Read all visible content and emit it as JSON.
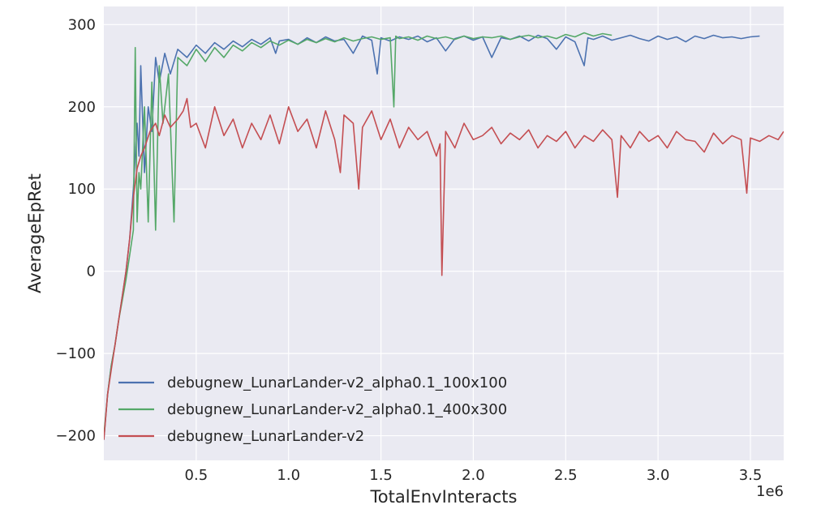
{
  "chart_data": {
    "type": "line",
    "xlabel": "TotalEnvInteracts",
    "ylabel": "AverageEpRet",
    "x_offset_label": "1e6",
    "xlim": [
      0,
      3.68
    ],
    "ylim": [
      -230,
      322
    ],
    "xticks": [
      0.5,
      1.0,
      1.5,
      2.0,
      2.5,
      3.0,
      3.5
    ],
    "xtick_labels": [
      "0.5",
      "1.0",
      "1.5",
      "2.0",
      "2.5",
      "3.0",
      "3.5"
    ],
    "yticks": [
      -200,
      -100,
      0,
      100,
      200,
      300
    ],
    "ytick_labels": [
      "−200",
      "−100",
      "0",
      "100",
      "200",
      "300"
    ],
    "grid": true,
    "legend_position": "lower-left",
    "background": "#EAEAF2",
    "series": [
      {
        "name": "debugnew_LunarLander-v2_alpha0.1_100x100",
        "color": "#4C72B0",
        "x": [
          0.0,
          0.02,
          0.04,
          0.06,
          0.08,
          0.1,
          0.12,
          0.14,
          0.16,
          0.18,
          0.19,
          0.2,
          0.22,
          0.24,
          0.26,
          0.28,
          0.3,
          0.33,
          0.36,
          0.4,
          0.45,
          0.5,
          0.55,
          0.6,
          0.65,
          0.7,
          0.75,
          0.8,
          0.85,
          0.9,
          0.93,
          0.95,
          1.0,
          1.05,
          1.1,
          1.15,
          1.2,
          1.25,
          1.3,
          1.35,
          1.4,
          1.45,
          1.48,
          1.5,
          1.55,
          1.6,
          1.65,
          1.7,
          1.75,
          1.8,
          1.85,
          1.9,
          1.95,
          2.0,
          2.05,
          2.1,
          2.15,
          2.2,
          2.25,
          2.3,
          2.35,
          2.4,
          2.45,
          2.5,
          2.55,
          2.6,
          2.62,
          2.65,
          2.7,
          2.75,
          2.8,
          2.85,
          2.9,
          2.95,
          3.0,
          3.05,
          3.1,
          3.15,
          3.2,
          3.25,
          3.3,
          3.35,
          3.4,
          3.45,
          3.5,
          3.55
        ],
        "y": [
          -205,
          -150,
          -115,
          -90,
          -60,
          -30,
          0,
          40,
          100,
          180,
          140,
          250,
          120,
          200,
          170,
          260,
          230,
          265,
          240,
          270,
          260,
          275,
          265,
          278,
          270,
          280,
          273,
          282,
          276,
          284,
          265,
          280,
          282,
          276,
          284,
          278,
          285,
          280,
          282,
          265,
          286,
          281,
          240,
          284,
          280,
          285,
          282,
          286,
          279,
          284,
          268,
          283,
          286,
          281,
          285,
          260,
          284,
          282,
          286,
          280,
          287,
          283,
          270,
          285,
          279,
          250,
          284,
          282,
          286,
          281,
          284,
          287,
          283,
          280,
          286,
          282,
          285,
          279,
          286,
          283,
          287,
          284,
          285,
          283,
          285,
          286
        ]
      },
      {
        "name": "debugnew_LunarLander-v2_alpha0.1_400x300",
        "color": "#55A868",
        "x": [
          0.0,
          0.02,
          0.04,
          0.06,
          0.08,
          0.1,
          0.12,
          0.14,
          0.16,
          0.17,
          0.18,
          0.19,
          0.2,
          0.22,
          0.24,
          0.26,
          0.28,
          0.3,
          0.32,
          0.35,
          0.38,
          0.4,
          0.45,
          0.5,
          0.55,
          0.6,
          0.65,
          0.7,
          0.75,
          0.8,
          0.85,
          0.9,
          0.95,
          1.0,
          1.05,
          1.1,
          1.15,
          1.2,
          1.25,
          1.3,
          1.35,
          1.4,
          1.45,
          1.5,
          1.55,
          1.57,
          1.58,
          1.6,
          1.65,
          1.7,
          1.75,
          1.8,
          1.85,
          1.9,
          1.95,
          2.0,
          2.05,
          2.1,
          2.15,
          2.2,
          2.25,
          2.3,
          2.35,
          2.4,
          2.45,
          2.5,
          2.55,
          2.6,
          2.65,
          2.7,
          2.75
        ],
        "y": [
          -200,
          -150,
          -115,
          -90,
          -60,
          -35,
          -10,
          20,
          50,
          272,
          60,
          120,
          100,
          200,
          60,
          230,
          50,
          250,
          180,
          240,
          60,
          260,
          250,
          270,
          255,
          272,
          260,
          275,
          268,
          278,
          272,
          280,
          275,
          281,
          276,
          282,
          278,
          283,
          279,
          284,
          280,
          283,
          285,
          282,
          284,
          200,
          286,
          283,
          285,
          281,
          286,
          283,
          285,
          282,
          286,
          283,
          285,
          284,
          286,
          282,
          285,
          287,
          284,
          286,
          283,
          288,
          285,
          290,
          286,
          289,
          287
        ]
      },
      {
        "name": "debugnew_LunarLander-v2",
        "color": "#C44E52",
        "x": [
          0.0,
          0.02,
          0.04,
          0.06,
          0.08,
          0.1,
          0.12,
          0.14,
          0.16,
          0.18,
          0.2,
          0.22,
          0.25,
          0.28,
          0.3,
          0.33,
          0.36,
          0.4,
          0.43,
          0.45,
          0.47,
          0.5,
          0.55,
          0.6,
          0.65,
          0.7,
          0.75,
          0.8,
          0.85,
          0.9,
          0.95,
          1.0,
          1.05,
          1.1,
          1.15,
          1.2,
          1.25,
          1.28,
          1.3,
          1.35,
          1.38,
          1.4,
          1.45,
          1.5,
          1.55,
          1.6,
          1.65,
          1.7,
          1.75,
          1.8,
          1.82,
          1.83,
          1.85,
          1.9,
          1.95,
          2.0,
          2.05,
          2.1,
          2.15,
          2.2,
          2.25,
          2.3,
          2.35,
          2.4,
          2.45,
          2.5,
          2.55,
          2.6,
          2.65,
          2.7,
          2.75,
          2.78,
          2.8,
          2.85,
          2.9,
          2.95,
          3.0,
          3.05,
          3.1,
          3.15,
          3.2,
          3.25,
          3.3,
          3.35,
          3.4,
          3.45,
          3.48,
          3.5,
          3.55,
          3.6,
          3.65,
          3.68
        ],
        "y": [
          -205,
          -150,
          -120,
          -90,
          -60,
          -30,
          0,
          40,
          90,
          125,
          140,
          150,
          170,
          180,
          165,
          190,
          175,
          185,
          195,
          210,
          175,
          180,
          150,
          200,
          165,
          185,
          150,
          180,
          160,
          190,
          155,
          200,
          170,
          185,
          150,
          195,
          160,
          120,
          190,
          180,
          100,
          175,
          195,
          160,
          185,
          150,
          175,
          160,
          170,
          140,
          155,
          -5,
          170,
          150,
          180,
          160,
          165,
          175,
          155,
          168,
          160,
          172,
          150,
          165,
          158,
          170,
          150,
          165,
          158,
          172,
          160,
          90,
          165,
          150,
          170,
          158,
          165,
          150,
          170,
          160,
          158,
          145,
          168,
          155,
          165,
          160,
          95,
          162,
          158,
          165,
          160,
          170
        ]
      }
    ]
  }
}
